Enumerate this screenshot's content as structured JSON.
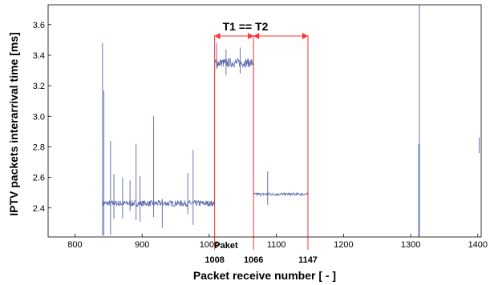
{
  "chart_data": {
    "type": "line",
    "xlabel": "Packet receive number [ - ]",
    "ylabel": "IPTV packets interarrival time [ms]",
    "xlim": [
      760,
      1405
    ],
    "ylim": [
      2.21,
      3.73
    ],
    "xticks": [
      "800",
      "900",
      "1000",
      "1100",
      "1200",
      "1300",
      "1400"
    ],
    "yticks": [
      "2.4",
      "2.6",
      "2.8",
      "3.0",
      "3.2",
      "3.4",
      "3.6"
    ],
    "grid": false,
    "legend": "none",
    "line_color": "#5566aa",
    "marker_color": "#ff3333",
    "series": [
      {
        "segments": [
          {
            "x_start": 841,
            "x_end": 1008,
            "baseline": 2.43,
            "noise": 0.02
          },
          {
            "x_start": 1008,
            "x_end": 1066,
            "baseline": 3.35,
            "noise": 0.03
          },
          {
            "x_start": 1066,
            "x_end": 1147,
            "baseline": 2.49,
            "noise": 0.01
          }
        ],
        "spikes": [
          {
            "x": 841,
            "low": 2.22,
            "high": 3.48
          },
          {
            "x": 843,
            "low": 2.22,
            "high": 3.17
          },
          {
            "x": 853,
            "low": 2.22,
            "high": 2.84
          },
          {
            "x": 858,
            "low": 2.33,
            "high": 2.62
          },
          {
            "x": 871,
            "low": 2.33,
            "high": 2.6
          },
          {
            "x": 882,
            "low": 2.38,
            "high": 2.58
          },
          {
            "x": 891,
            "low": 2.32,
            "high": 2.82
          },
          {
            "x": 897,
            "low": 2.31,
            "high": 2.61
          },
          {
            "x": 917,
            "low": 2.34,
            "high": 3.0
          },
          {
            "x": 930,
            "low": 2.27,
            "high": 2.46
          },
          {
            "x": 968,
            "low": 2.36,
            "high": 2.63
          },
          {
            "x": 976,
            "low": 2.29,
            "high": 2.78
          },
          {
            "x": 1011,
            "low": 3.31,
            "high": 3.48
          },
          {
            "x": 1025,
            "low": 3.27,
            "high": 3.44
          },
          {
            "x": 1046,
            "low": 3.28,
            "high": 3.45
          },
          {
            "x": 1087,
            "low": 2.42,
            "high": 2.64
          },
          {
            "x": 1313,
            "low": 2.21,
            "high": 3.73
          },
          {
            "x": 1312,
            "low": 2.21,
            "high": 2.82
          },
          {
            "x": 1402,
            "low": 2.76,
            "high": 2.86
          }
        ]
      }
    ],
    "annotations": {
      "title_label": "T1 == T2",
      "paket_label": "Paket",
      "markers": [
        {
          "x": 1008,
          "label": "1008"
        },
        {
          "x": 1066,
          "label": "1066"
        },
        {
          "x": 1147,
          "label": "1147"
        }
      ]
    }
  }
}
